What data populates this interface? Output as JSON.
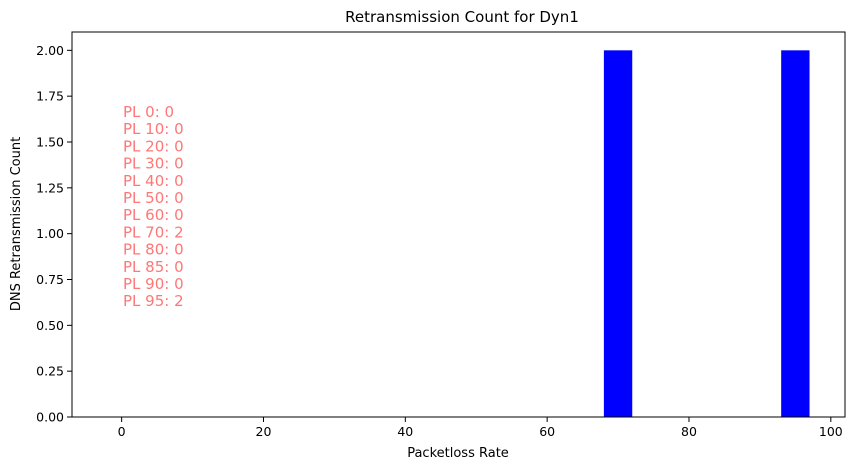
{
  "chart_data": {
    "type": "bar",
    "title": "Retransmission Count for Dyn1",
    "xlabel": "Packetloss Rate",
    "ylabel": "DNS Retransmission Count",
    "x": [
      0,
      10,
      20,
      30,
      40,
      50,
      60,
      70,
      80,
      85,
      90,
      95
    ],
    "values": [
      0,
      0,
      0,
      0,
      0,
      0,
      0,
      2,
      0,
      0,
      0,
      2
    ],
    "bar_width": 4,
    "xlim": [
      -7,
      102
    ],
    "ylim": [
      0,
      2.1
    ],
    "xticks": [
      0,
      20,
      40,
      60,
      80,
      100
    ],
    "xtick_labels": [
      "0",
      "20",
      "40",
      "60",
      "80",
      "100"
    ],
    "yticks": [
      0,
      0.25,
      0.5,
      0.75,
      1.0,
      1.25,
      1.5,
      1.75,
      2.0
    ],
    "ytick_labels": [
      "0.00",
      "0.25",
      "0.50",
      "0.75",
      "1.00",
      "1.25",
      "1.50",
      "1.75",
      "2.00"
    ],
    "bar_color": "#0000ff",
    "grid": false,
    "annotations": [
      "PL 0: 0",
      "PL 10: 0",
      "PL 20: 0",
      "PL 30: 0",
      "PL 40: 0",
      "PL 50: 0",
      "PL 60: 0",
      "PL 70: 2",
      "PL 80: 0",
      "PL 85: 0",
      "PL 90: 0",
      "PL 95: 2"
    ],
    "annotation_color": "#ff7777"
  }
}
